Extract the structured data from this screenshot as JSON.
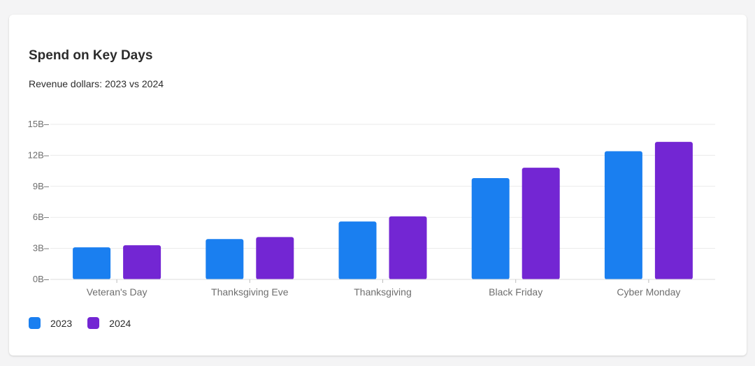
{
  "card": {
    "title": "Spend on Key Days",
    "subtitle": "Revenue dollars: 2023 vs 2024"
  },
  "legend": [
    {
      "label": "2023",
      "color": "#1a7ff0"
    },
    {
      "label": "2024",
      "color": "#7326d3"
    }
  ],
  "chart_data": {
    "type": "bar",
    "title": "Spend on Key Days",
    "subtitle": "Revenue dollars: 2023 vs 2024",
    "categories": [
      "Veteran's Day",
      "Thanksgiving Eve",
      "Thanksgiving",
      "Black Friday",
      "Cyber Monday"
    ],
    "series": [
      {
        "name": "2023",
        "color": "#1a7ff0",
        "values": [
          3.1,
          3.9,
          5.6,
          9.8,
          12.4
        ]
      },
      {
        "name": "2024",
        "color": "#7326d3",
        "values": [
          3.3,
          4.1,
          6.1,
          10.8,
          13.3
        ]
      }
    ],
    "y_ticks": [
      "0B",
      "3B",
      "6B",
      "9B",
      "12B",
      "15B"
    ],
    "ylim": [
      0,
      15
    ],
    "grid": true,
    "legend_position": "bottom-left"
  }
}
